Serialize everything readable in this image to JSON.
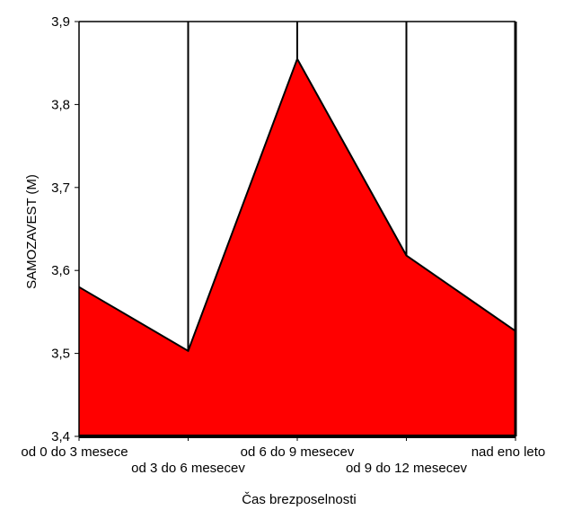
{
  "chart_data": {
    "type": "area",
    "title": "",
    "xlabel": "Čas brezposelnosti",
    "ylabel": "SAMOZAVEST (M)",
    "categories": [
      "od 0 do 3 mesece",
      "od 3 do 6 mesecev",
      "od 6 do 9 mesecev",
      "od 9 do 12 mesecev",
      "nad eno leto"
    ],
    "values": [
      3.58,
      3.503,
      3.855,
      3.618,
      3.527
    ],
    "ylim": [
      3.4,
      3.9
    ],
    "yticks": [
      "3,4",
      "3,5",
      "3,6",
      "3,7",
      "3,8",
      "3,9"
    ],
    "grid": "vertical",
    "legend": "none",
    "colors": {
      "fill": "#ff0000",
      "line": "#000000",
      "background": "#ffffff"
    }
  }
}
